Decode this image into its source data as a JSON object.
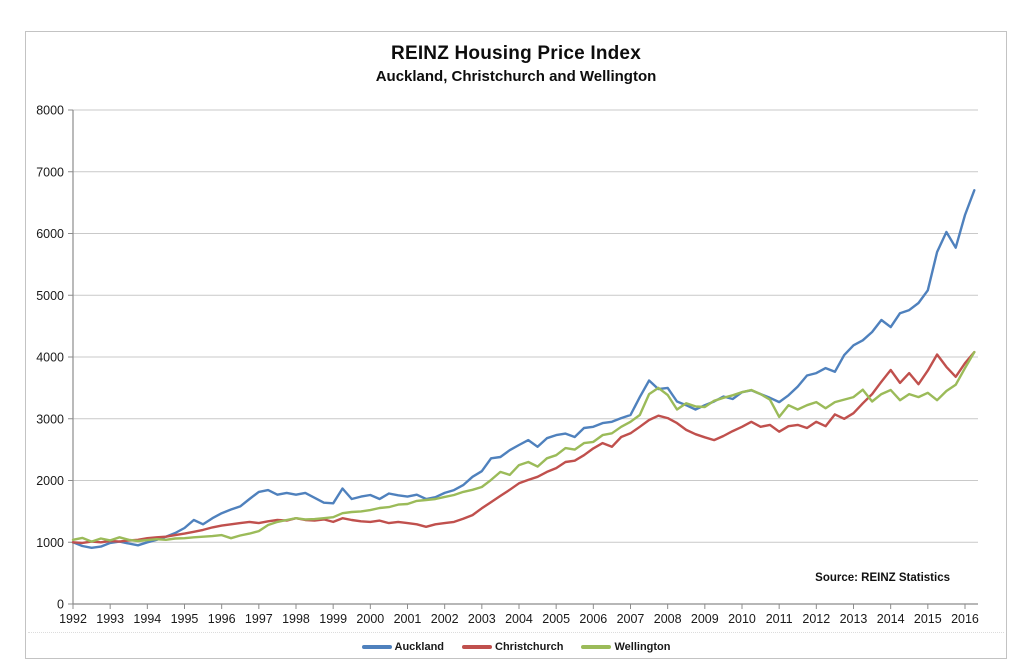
{
  "chart_data": {
    "type": "line",
    "title": "REINZ Housing Price Index",
    "subtitle": "Auckland, Christchurch and Wellington",
    "source_note": "Source: REINZ Statistics",
    "grid": "horizontal",
    "legend_position": "bottom",
    "xlim": [
      1992,
      2016.35
    ],
    "ylim": [
      0,
      8000
    ],
    "x_tick_years": [
      1992,
      1993,
      1994,
      1995,
      1996,
      1997,
      1998,
      1999,
      2000,
      2001,
      2002,
      2003,
      2004,
      2005,
      2006,
      2007,
      2008,
      2009,
      2010,
      2011,
      2012,
      2013,
      2014,
      2015,
      2016
    ],
    "y_ticks": [
      0,
      1000,
      2000,
      3000,
      4000,
      5000,
      6000,
      7000,
      8000
    ],
    "x_start": 1992.0,
    "x_step": 0.25,
    "series": [
      {
        "name": "Auckland",
        "color": "#4F81BD",
        "values": [
          1000,
          940,
          910,
          930,
          990,
          1010,
          980,
          950,
          1000,
          1040,
          1090,
          1150,
          1230,
          1360,
          1290,
          1390,
          1470,
          1530,
          1580,
          1700,
          1815,
          1845,
          1770,
          1800,
          1770,
          1800,
          1720,
          1640,
          1630,
          1870,
          1700,
          1740,
          1765,
          1700,
          1790,
          1760,
          1740,
          1770,
          1700,
          1730,
          1800,
          1845,
          1925,
          2060,
          2150,
          2360,
          2380,
          2490,
          2575,
          2655,
          2545,
          2685,
          2735,
          2760,
          2705,
          2850,
          2870,
          2930,
          2950,
          3010,
          3060,
          3350,
          3620,
          3480,
          3500,
          3280,
          3220,
          3150,
          3220,
          3280,
          3360,
          3320,
          3430,
          3460,
          3400,
          3340,
          3270,
          3380,
          3520,
          3700,
          3740,
          3820,
          3760,
          4030,
          4190,
          4270,
          4405,
          4600,
          4485,
          4710,
          4760,
          4875,
          5080,
          5700,
          6025,
          5770,
          6300,
          6700
        ]
      },
      {
        "name": "Christchurch",
        "color": "#C0504D",
        "values": [
          1000,
          990,
          1010,
          1000,
          1020,
          1010,
          1030,
          1040,
          1065,
          1080,
          1090,
          1115,
          1140,
          1170,
          1200,
          1240,
          1270,
          1290,
          1310,
          1330,
          1310,
          1340,
          1360,
          1350,
          1390,
          1360,
          1350,
          1370,
          1330,
          1390,
          1360,
          1340,
          1330,
          1350,
          1310,
          1330,
          1310,
          1290,
          1250,
          1290,
          1310,
          1330,
          1380,
          1440,
          1550,
          1650,
          1750,
          1850,
          1955,
          2010,
          2060,
          2140,
          2200,
          2300,
          2320,
          2410,
          2520,
          2605,
          2545,
          2705,
          2765,
          2870,
          2980,
          3050,
          3010,
          2930,
          2820,
          2750,
          2700,
          2655,
          2720,
          2800,
          2870,
          2950,
          2870,
          2900,
          2790,
          2880,
          2900,
          2850,
          2950,
          2880,
          3070,
          3000,
          3090,
          3250,
          3400,
          3600,
          3790,
          3580,
          3740,
          3560,
          3780,
          4040,
          3840,
          3680,
          3900,
          4080
        ]
      },
      {
        "name": "Wellington",
        "color": "#9BBB59",
        "values": [
          1040,
          1070,
          1010,
          1060,
          1030,
          1080,
          1040,
          1020,
          1035,
          1050,
          1040,
          1060,
          1065,
          1080,
          1090,
          1100,
          1115,
          1065,
          1110,
          1140,
          1180,
          1280,
          1330,
          1360,
          1390,
          1370,
          1375,
          1390,
          1405,
          1470,
          1490,
          1500,
          1520,
          1555,
          1570,
          1610,
          1620,
          1670,
          1685,
          1700,
          1735,
          1765,
          1815,
          1850,
          1895,
          2010,
          2140,
          2090,
          2250,
          2300,
          2225,
          2360,
          2410,
          2525,
          2500,
          2605,
          2625,
          2735,
          2765,
          2870,
          2950,
          3060,
          3400,
          3500,
          3385,
          3150,
          3250,
          3200,
          3190,
          3290,
          3340,
          3380,
          3430,
          3465,
          3400,
          3310,
          3030,
          3220,
          3150,
          3220,
          3270,
          3170,
          3270,
          3310,
          3350,
          3470,
          3280,
          3400,
          3465,
          3300,
          3400,
          3350,
          3420,
          3300,
          3450,
          3550,
          3820,
          4080
        ]
      }
    ]
  }
}
